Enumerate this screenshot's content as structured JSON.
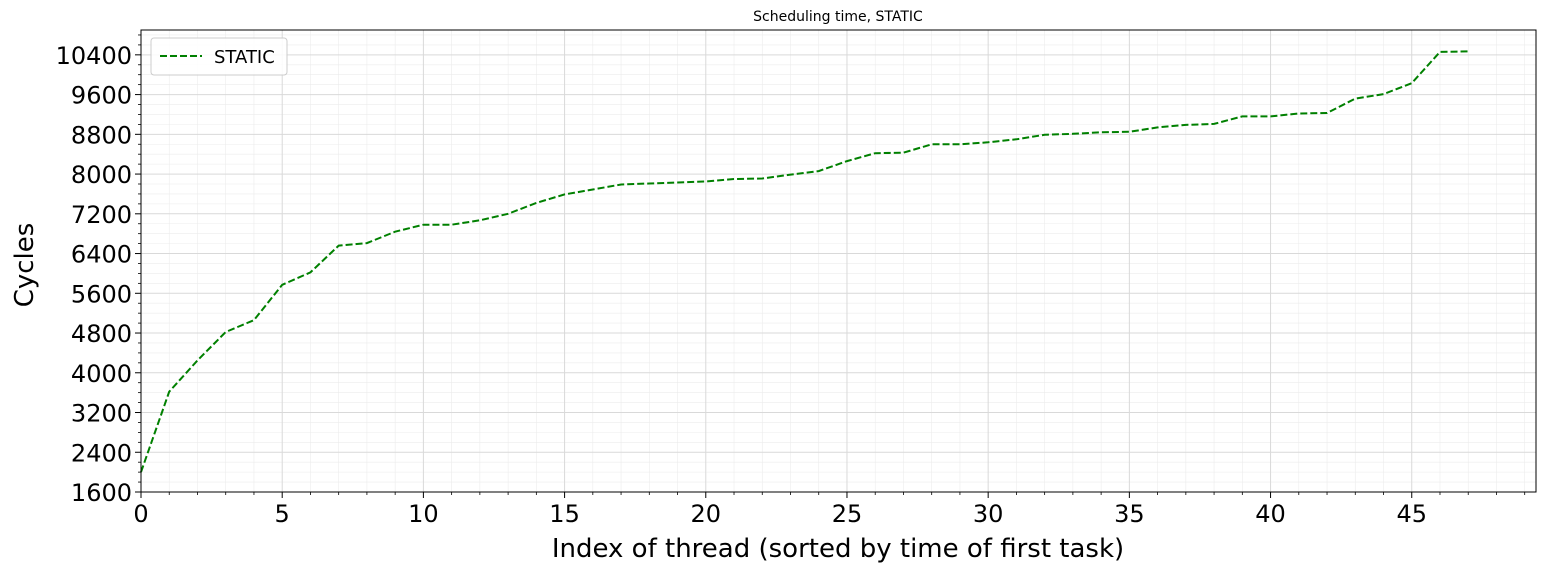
{
  "chart_data": {
    "type": "line",
    "title": "Scheduling time, STATIC",
    "xlabel": "Index of thread (sorted by time of first task)",
    "ylabel": "Cycles",
    "xlim": [
      0,
      49.4
    ],
    "ylim": [
      1600,
      10900
    ],
    "xticks": [
      0,
      5,
      10,
      15,
      20,
      25,
      30,
      35,
      40,
      45
    ],
    "yticks": [
      1600,
      2400,
      3200,
      4000,
      4800,
      5600,
      6400,
      7200,
      8000,
      8800,
      9600,
      10400
    ],
    "grid": true,
    "minor_grid": true,
    "legend_position": "upper left",
    "series": [
      {
        "name": "STATIC",
        "color": "#008000",
        "line_style": "dashed",
        "x": [
          0,
          1,
          2,
          3,
          4,
          5,
          6,
          7,
          8,
          9,
          10,
          11,
          12,
          13,
          14,
          15,
          16,
          17,
          18,
          19,
          20,
          21,
          22,
          23,
          24,
          25,
          26,
          27,
          28,
          29,
          30,
          31,
          32,
          33,
          34,
          35,
          36,
          37,
          38,
          39,
          40,
          41,
          42,
          43,
          44,
          45,
          46,
          47
        ],
        "y": [
          2000,
          3620,
          4250,
          4820,
          5060,
          5770,
          6020,
          6560,
          6610,
          6840,
          6980,
          6980,
          7070,
          7200,
          7420,
          7590,
          7690,
          7790,
          7810,
          7830,
          7850,
          7900,
          7910,
          7990,
          8060,
          8260,
          8420,
          8430,
          8600,
          8600,
          8640,
          8700,
          8790,
          8810,
          8840,
          8850,
          8940,
          8990,
          9010,
          9160,
          9160,
          9220,
          9230,
          9520,
          9610,
          9830,
          10460,
          10470
        ]
      }
    ]
  }
}
